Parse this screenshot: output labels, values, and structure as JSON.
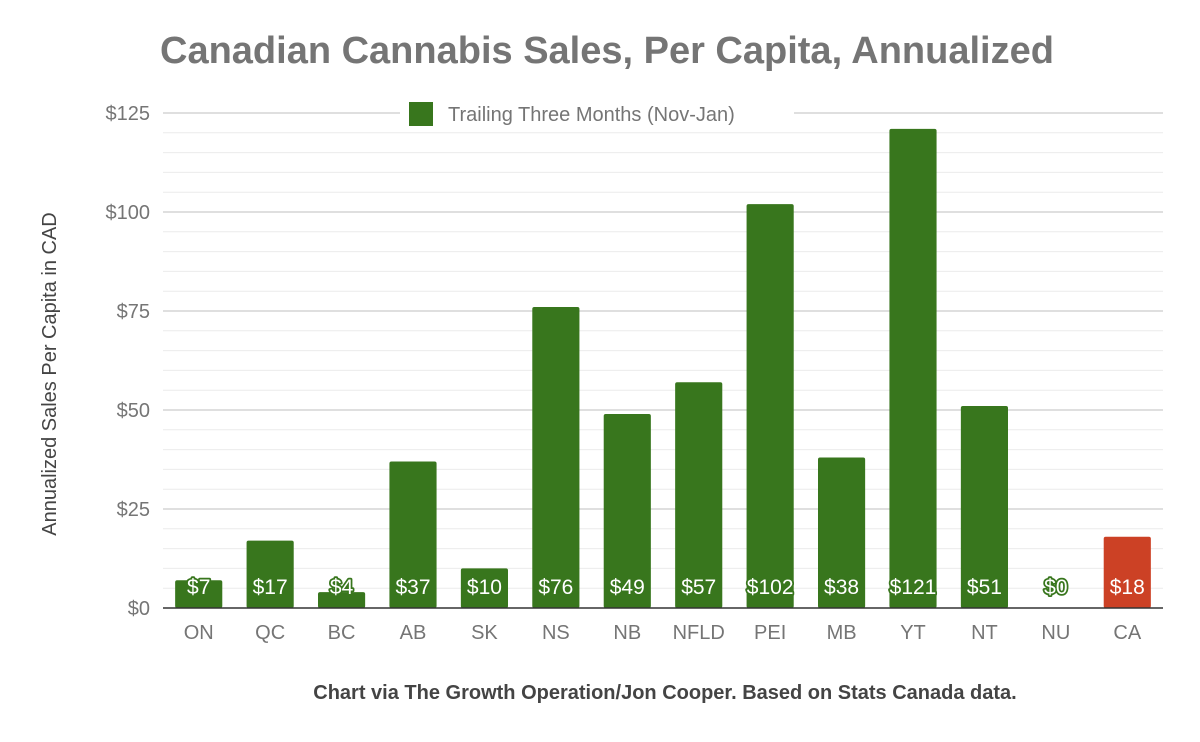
{
  "chart_data": {
    "type": "bar",
    "title": "Canadian Cannabis Sales, Per Capita, Annualized",
    "ylabel": "Annualized Sales Per Capita in CAD",
    "xlabel": "",
    "ylim": [
      0,
      125
    ],
    "yticks": [
      0,
      25,
      50,
      75,
      100,
      125
    ],
    "ytick_labels": [
      "$0",
      "$25",
      "$50",
      "$75",
      "$100",
      "$125"
    ],
    "legend": {
      "position": "top",
      "entries": [
        {
          "name": "Trailing Three Months (Nov-Jan)",
          "color": "#38761d"
        }
      ]
    },
    "grid": true,
    "categories": [
      "ON",
      "QC",
      "BC",
      "AB",
      "SK",
      "NS",
      "NB",
      "NFLD",
      "PEI",
      "MB",
      "YT",
      "NT",
      "NU",
      "CA"
    ],
    "series": [
      {
        "name": "Trailing Three Months (Nov-Jan)",
        "values": [
          7,
          17,
          4,
          37,
          10,
          76,
          49,
          57,
          102,
          38,
          121,
          51,
          0,
          18
        ],
        "data_labels": [
          "$7",
          "$17",
          "$4",
          "$37",
          "$10",
          "$76",
          "$49",
          "$57",
          "$102",
          "$38",
          "$121",
          "$51",
          "$0",
          "$18"
        ]
      }
    ],
    "colors": {
      "default": "#38761d",
      "highlight": "#cc4125"
    },
    "highlight_categories": [
      "CA"
    ]
  },
  "source_note": "Chart via The Growth Operation/Jon Cooper. Based on Stats Canada data."
}
